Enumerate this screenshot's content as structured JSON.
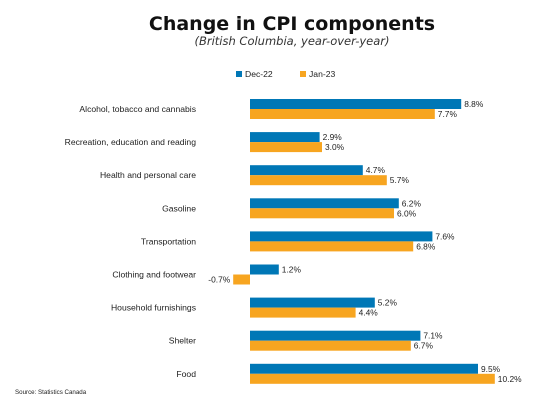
{
  "chart_data": {
    "type": "bar",
    "orientation": "horizontal",
    "title": "Change in CPI components",
    "subtitle": "(British Columbia, year-over-year)",
    "categories": [
      "Alcohol, tobacco and cannabis",
      "Recreation, education and reading",
      "Health and personal care",
      "Gasoline",
      "Transportation",
      "Clothing and footwear",
      "Household furnishings",
      "Shelter",
      "Food"
    ],
    "series": [
      {
        "name": "Dec-22",
        "color": "#0077b6",
        "values": [
          8.8,
          2.9,
          4.7,
          6.2,
          7.6,
          1.2,
          5.2,
          7.1,
          9.5
        ],
        "labels": [
          "8.8%",
          "2.9%",
          "4.7%",
          "6.2%",
          "7.6%",
          "1.2%",
          "5.2%",
          "7.1%",
          "9.5%"
        ]
      },
      {
        "name": "Jan-23",
        "color": "#f7a520",
        "values": [
          7.7,
          3.0,
          5.7,
          6.0,
          6.8,
          -0.7,
          4.4,
          6.7,
          10.2
        ],
        "labels": [
          "7.7%",
          "3.0%",
          "5.7%",
          "6.0%",
          "6.8%",
          "-0.7%",
          "4.4%",
          "6.7%",
          "10.2%"
        ]
      }
    ],
    "legend": "top",
    "grid": false,
    "source": "Source: Statistics Canada"
  }
}
